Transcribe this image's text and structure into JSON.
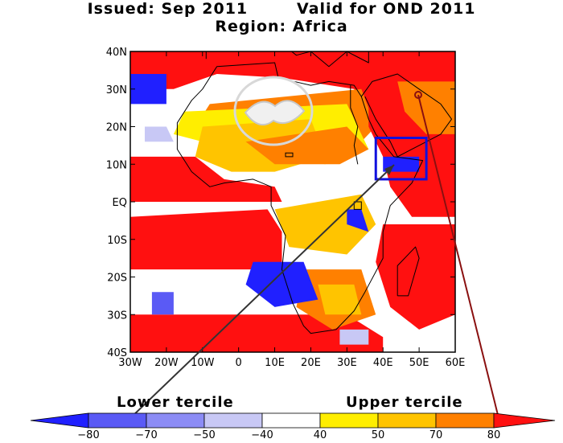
{
  "title": {
    "line1": "Issued: Sep 2011        Valid for OND 2011",
    "line2": "Region: Africa"
  },
  "map": {
    "lat_labels": [
      "40N",
      "30N",
      "20N",
      "10N",
      "EQ",
      "10S",
      "20S",
      "30S",
      "40S"
    ],
    "lon_labels": [
      "30W",
      "20W",
      "10W",
      "0",
      "10E",
      "20E",
      "30E",
      "40E",
      "50E",
      "60E"
    ],
    "lat_range": [
      -40,
      40
    ],
    "lon_range": [
      -30,
      60
    ],
    "highlight_box": {
      "lon_min": 38,
      "lon_max": 52,
      "lat_min": 6,
      "lat_max": 17,
      "color": "#1010dd"
    }
  },
  "legend": {
    "lower_label": "Lower tercile",
    "upper_label": "Upper tercile",
    "tick_labels": [
      "−80",
      "−70",
      "−50",
      "−40",
      "40",
      "50",
      "70",
      "80"
    ],
    "bins": [
      {
        "from": -90,
        "to": -80,
        "color": "#2020ff"
      },
      {
        "from": -80,
        "to": -70,
        "color": "#5a5af5"
      },
      {
        "from": -70,
        "to": -50,
        "color": "#8c8cf5"
      },
      {
        "from": -50,
        "to": -40,
        "color": "#c8c8f5"
      },
      {
        "from": -40,
        "to": 40,
        "color": "#ffffff"
      },
      {
        "from": 40,
        "to": 50,
        "color": "#ffee00"
      },
      {
        "from": 50,
        "to": 70,
        "color": "#ffc400"
      },
      {
        "from": 70,
        "to": 80,
        "color": "#ff8000"
      },
      {
        "from": 80,
        "to": 90,
        "color": "#ff1010"
      }
    ]
  },
  "colors": {
    "red": "#ff1010",
    "orange": "#ff8000",
    "gold": "#ffc400",
    "yellow": "#ffee00",
    "blue": "#2020ff",
    "midblue": "#5a5af5",
    "lightblue": "#c8c8f5"
  }
}
